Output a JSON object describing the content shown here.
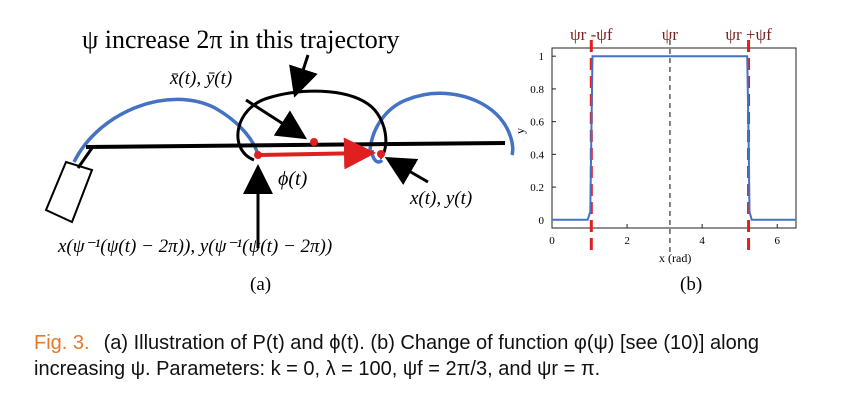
{
  "panel_a": {
    "title": "ψ increase 2π  in this trajectory",
    "label_mean": "x̄(t), ȳ(t)",
    "label_phi": "ϕ(t)",
    "label_xy": "x(t), y(t)",
    "label_inverse": "x(ψ⁻¹(ψ(t) − 2π)), y(ψ⁻¹(ψ(t) − 2π))",
    "sublabel": "(a)"
  },
  "panel_b": {
    "top_labels": [
      "ψr -ψf",
      "ψr",
      "ψr +ψf"
    ],
    "xlabel": "x (rad)",
    "ylabel": "y",
    "sublabel": "(b)",
    "colors": {
      "curve": "#4472c4",
      "marker": "#e02020",
      "center": "#333333"
    }
  },
  "chart_data": {
    "type": "line",
    "xlim": [
      0,
      6.5
    ],
    "ylim": [
      -0.05,
      1.05
    ],
    "xticks": [
      "0",
      "2",
      "4",
      "6"
    ],
    "yticks": [
      "0",
      "0.2",
      "0.4",
      "0.6",
      "0.8",
      "1"
    ],
    "series": [
      {
        "x": [
          0,
          0.95,
          1.02,
          1.047,
          1.08,
          2.0,
          3.14159,
          4.0,
          5.2,
          5.236,
          5.26,
          5.32,
          6.5
        ],
        "y": [
          0,
          0,
          0.05,
          0.5,
          1,
          1,
          1,
          1,
          1,
          0.5,
          0.05,
          0,
          0
        ]
      }
    ],
    "vlines": [
      1.047,
      3.14159,
      5.236
    ]
  },
  "caption": {
    "label": "Fig. 3.",
    "text": "(a) Illustration of P(t) and ϕ(t). (b) Change of function φ(ψ) [see (10)] along increasing ψ. Parameters: k = 0, λ = 100, ψf = 2π/3, and ψr = π."
  }
}
